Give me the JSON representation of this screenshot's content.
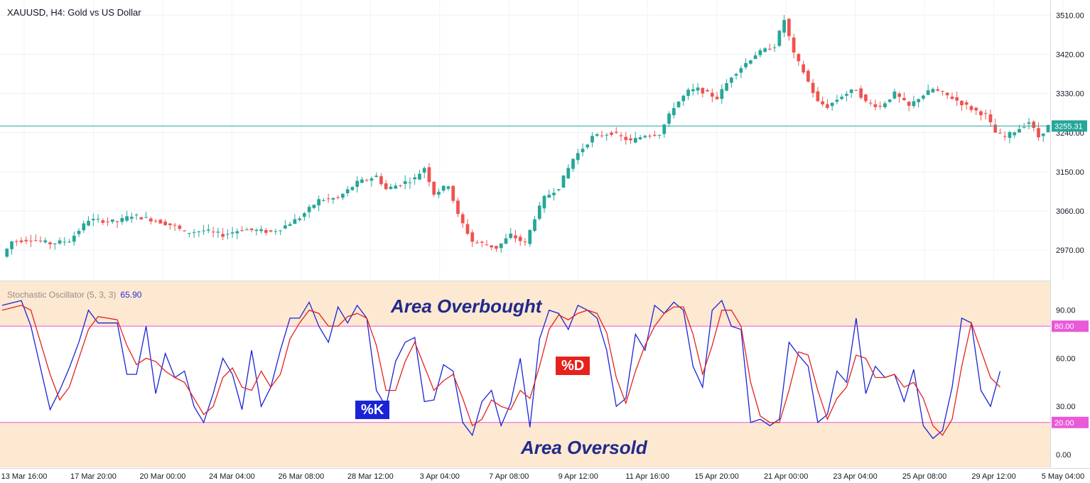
{
  "symbol_title": "XAUUSD, H4: Gold vs US Dollar",
  "current_price_label": "3255.31",
  "colors": {
    "up": "#26a69a",
    "down": "#ef5350",
    "k_line": "#1a24d6",
    "d_line": "#e5221c",
    "zone_fill": "#fde8d2",
    "level_line": "#e85ad7",
    "price_line": "#26a69a"
  },
  "annotations": {
    "overbought": "Area Overbought",
    "oversold": "Area Oversold",
    "k_tag": "%K",
    "d_tag": "%D"
  },
  "chart_data": [
    {
      "type": "candlestick",
      "title": "XAUUSD, H4: Gold vs US Dollar",
      "ylim": [
        2900,
        3545
      ],
      "y_ticks": [
        "3510.00",
        "3420.00",
        "3330.00",
        "3240.00",
        "3150.00",
        "3060.00",
        "2970.00"
      ],
      "x_tick_labels": [
        "13 Mar 16:00",
        "17 Mar 20:00",
        "20 Mar 00:00",
        "24 Mar 04:00",
        "26 Mar 08:00",
        "28 Mar 12:00",
        "3 Apr 04:00",
        "7 Apr 08:00",
        "9 Apr 12:00",
        "11 Apr 16:00",
        "15 Apr 20:00",
        "21 Apr 00:00",
        "23 Apr 04:00",
        "25 Apr 08:00",
        "29 Apr 12:00",
        "5 May 04:00"
      ],
      "last_price": 3255.31,
      "close_path": [
        [
          0,
          2955
        ],
        [
          2,
          2990
        ],
        [
          6,
          2995
        ],
        [
          10,
          2985
        ],
        [
          14,
          2992
        ],
        [
          18,
          3040
        ],
        [
          24,
          3035
        ],
        [
          27,
          3050
        ],
        [
          32,
          3038
        ],
        [
          36,
          3025
        ],
        [
          38,
          3010
        ],
        [
          42,
          3015
        ],
        [
          46,
          3005
        ],
        [
          50,
          3018
        ],
        [
          56,
          3012
        ],
        [
          58,
          3020
        ],
        [
          62,
          3045
        ],
        [
          66,
          3085
        ],
        [
          70,
          3090
        ],
        [
          74,
          3125
        ],
        [
          78,
          3140
        ],
        [
          80,
          3110
        ],
        [
          86,
          3135
        ],
        [
          88,
          3160
        ],
        [
          90,
          3100
        ],
        [
          93,
          3120
        ],
        [
          95,
          3050
        ],
        [
          98,
          2990
        ],
        [
          100,
          2985
        ],
        [
          103,
          2975
        ],
        [
          106,
          3005
        ],
        [
          109,
          2985
        ],
        [
          111,
          3045
        ],
        [
          113,
          3090
        ],
        [
          116,
          3115
        ],
        [
          119,
          3180
        ],
        [
          123,
          3230
        ],
        [
          127,
          3240
        ],
        [
          131,
          3220
        ],
        [
          134,
          3235
        ],
        [
          137,
          3238
        ],
        [
          140,
          3300
        ],
        [
          143,
          3335
        ],
        [
          145,
          3340
        ],
        [
          149,
          3320
        ],
        [
          152,
          3370
        ],
        [
          157,
          3420
        ],
        [
          161,
          3440
        ],
        [
          163,
          3500
        ],
        [
          165,
          3420
        ],
        [
          167,
          3380
        ],
        [
          170,
          3310
        ],
        [
          172,
          3300
        ],
        [
          175,
          3325
        ],
        [
          178,
          3340
        ],
        [
          180,
          3310
        ],
        [
          183,
          3300
        ],
        [
          186,
          3330
        ],
        [
          189,
          3300
        ],
        [
          191,
          3320
        ],
        [
          194,
          3340
        ],
        [
          198,
          3320
        ],
        [
          202,
          3295
        ],
        [
          205,
          3280
        ],
        [
          207,
          3240
        ],
        [
          209,
          3230
        ],
        [
          212,
          3250
        ],
        [
          214,
          3265
        ],
        [
          216,
          3230
        ],
        [
          218,
          3255
        ]
      ]
    },
    {
      "type": "line",
      "title": "Stochastic Oscillator (5, 3, 3)",
      "current_value": "65.90",
      "ylim": [
        -8,
        108
      ],
      "y_ticks": [
        "90.00",
        "60.00",
        "30.00",
        "0.00"
      ],
      "levels": [
        {
          "value": 80,
          "label": "80.00"
        },
        {
          "value": 20,
          "label": "20.00"
        }
      ],
      "series": [
        {
          "name": "%K",
          "points": [
            [
              0,
              93
            ],
            [
              4,
              96
            ],
            [
              6,
              80
            ],
            [
              10,
              28
            ],
            [
              12,
              40
            ],
            [
              14,
              54
            ],
            [
              16,
              70
            ],
            [
              18,
              90
            ],
            [
              20,
              82
            ],
            [
              24,
              82
            ],
            [
              26,
              50
            ],
            [
              28,
              50
            ],
            [
              30,
              80
            ],
            [
              32,
              38
            ],
            [
              34,
              63
            ],
            [
              36,
              48
            ],
            [
              38,
              52
            ],
            [
              40,
              30
            ],
            [
              42,
              20
            ],
            [
              44,
              38
            ],
            [
              46,
              60
            ],
            [
              48,
              50
            ],
            [
              50,
              28
            ],
            [
              52,
              65
            ],
            [
              54,
              30
            ],
            [
              56,
              42
            ],
            [
              58,
              65
            ],
            [
              60,
              85
            ],
            [
              62,
              85
            ],
            [
              64,
              95
            ],
            [
              66,
              80
            ],
            [
              68,
              70
            ],
            [
              70,
              92
            ],
            [
              72,
              82
            ],
            [
              74,
              93
            ],
            [
              76,
              85
            ],
            [
              78,
              40
            ],
            [
              80,
              30
            ],
            [
              82,
              58
            ],
            [
              84,
              70
            ],
            [
              86,
              73
            ],
            [
              88,
              33
            ],
            [
              90,
              34
            ],
            [
              92,
              56
            ],
            [
              94,
              52
            ],
            [
              96,
              20
            ],
            [
              98,
              12
            ],
            [
              100,
              33
            ],
            [
              102,
              40
            ],
            [
              104,
              18
            ],
            [
              106,
              32
            ],
            [
              108,
              60
            ],
            [
              110,
              17
            ],
            [
              112,
              72
            ],
            [
              114,
              90
            ],
            [
              116,
              88
            ],
            [
              118,
              78
            ],
            [
              120,
              93
            ],
            [
              122,
              90
            ],
            [
              124,
              85
            ],
            [
              126,
              65
            ],
            [
              128,
              30
            ],
            [
              130,
              35
            ],
            [
              132,
              75
            ],
            [
              134,
              65
            ],
            [
              136,
              93
            ],
            [
              138,
              88
            ],
            [
              140,
              95
            ],
            [
              142,
              90
            ],
            [
              144,
              55
            ],
            [
              146,
              42
            ],
            [
              148,
              90
            ],
            [
              150,
              96
            ],
            [
              152,
              80
            ],
            [
              154,
              78
            ],
            [
              156,
              20
            ],
            [
              158,
              22
            ],
            [
              160,
              18
            ],
            [
              162,
              22
            ],
            [
              164,
              70
            ],
            [
              166,
              62
            ],
            [
              168,
              55
            ],
            [
              170,
              20
            ],
            [
              172,
              25
            ],
            [
              174,
              52
            ],
            [
              176,
              45
            ],
            [
              178,
              85
            ],
            [
              180,
              38
            ],
            [
              182,
              55
            ],
            [
              184,
              48
            ],
            [
              186,
              50
            ],
            [
              188,
              33
            ],
            [
              190,
              53
            ],
            [
              192,
              18
            ],
            [
              194,
              10
            ],
            [
              196,
              15
            ],
            [
              198,
              42
            ],
            [
              200,
              85
            ],
            [
              202,
              82
            ],
            [
              204,
              40
            ],
            [
              206,
              30
            ],
            [
              208,
              52
            ]
          ]
        },
        {
          "name": "%D",
          "points": [
            [
              0,
              90
            ],
            [
              4,
              93
            ],
            [
              6,
              90
            ],
            [
              10,
              50
            ],
            [
              12,
              34
            ],
            [
              14,
              42
            ],
            [
              16,
              60
            ],
            [
              18,
              78
            ],
            [
              20,
              86
            ],
            [
              24,
              84
            ],
            [
              26,
              68
            ],
            [
              28,
              56
            ],
            [
              30,
              60
            ],
            [
              32,
              58
            ],
            [
              34,
              52
            ],
            [
              36,
              48
            ],
            [
              38,
              45
            ],
            [
              40,
              35
            ],
            [
              42,
              25
            ],
            [
              44,
              30
            ],
            [
              46,
              48
            ],
            [
              48,
              54
            ],
            [
              50,
              42
            ],
            [
              52,
              40
            ],
            [
              54,
              52
            ],
            [
              56,
              42
            ],
            [
              58,
              50
            ],
            [
              60,
              72
            ],
            [
              62,
              82
            ],
            [
              64,
              90
            ],
            [
              66,
              88
            ],
            [
              68,
              80
            ],
            [
              70,
              80
            ],
            [
              72,
              86
            ],
            [
              74,
              88
            ],
            [
              76,
              85
            ],
            [
              78,
              68
            ],
            [
              80,
              40
            ],
            [
              82,
              40
            ],
            [
              84,
              58
            ],
            [
              86,
              70
            ],
            [
              88,
              55
            ],
            [
              90,
              40
            ],
            [
              92,
              46
            ],
            [
              94,
              50
            ],
            [
              96,
              35
            ],
            [
              98,
              18
            ],
            [
              100,
              22
            ],
            [
              102,
              34
            ],
            [
              104,
              30
            ],
            [
              106,
              28
            ],
            [
              108,
              40
            ],
            [
              110,
              35
            ],
            [
              112,
              55
            ],
            [
              114,
              78
            ],
            [
              116,
              87
            ],
            [
              118,
              84
            ],
            [
              120,
              88
            ],
            [
              122,
              90
            ],
            [
              124,
              88
            ],
            [
              126,
              76
            ],
            [
              128,
              48
            ],
            [
              130,
              32
            ],
            [
              132,
              52
            ],
            [
              134,
              68
            ],
            [
              136,
              80
            ],
            [
              138,
              88
            ],
            [
              140,
              92
            ],
            [
              142,
              92
            ],
            [
              144,
              75
            ],
            [
              146,
              50
            ],
            [
              148,
              68
            ],
            [
              150,
              90
            ],
            [
              152,
              90
            ],
            [
              154,
              80
            ],
            [
              156,
              45
            ],
            [
              158,
              24
            ],
            [
              160,
              20
            ],
            [
              162,
              20
            ],
            [
              164,
              40
            ],
            [
              166,
              64
            ],
            [
              168,
              62
            ],
            [
              170,
              40
            ],
            [
              172,
              22
            ],
            [
              174,
              35
            ],
            [
              176,
              42
            ],
            [
              178,
              62
            ],
            [
              180,
              60
            ],
            [
              182,
              48
            ],
            [
              184,
              48
            ],
            [
              186,
              50
            ],
            [
              188,
              42
            ],
            [
              190,
              45
            ],
            [
              192,
              35
            ],
            [
              194,
              18
            ],
            [
              196,
              12
            ],
            [
              198,
              22
            ],
            [
              200,
              55
            ],
            [
              202,
              82
            ],
            [
              204,
              65
            ],
            [
              206,
              48
            ],
            [
              208,
              42
            ]
          ]
        }
      ]
    }
  ]
}
